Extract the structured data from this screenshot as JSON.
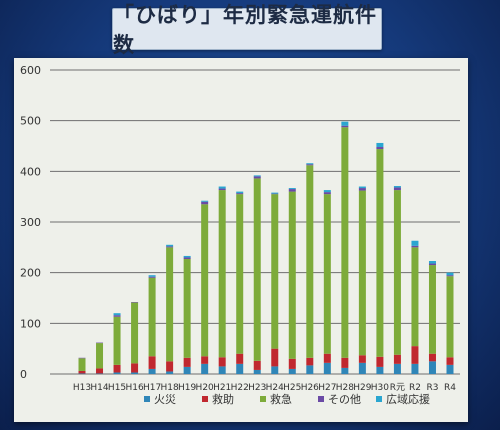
{
  "chart_data": {
    "type": "bar",
    "title": "「ひばり」年別緊急運航件数",
    "stacked": true,
    "ylim": [
      0,
      600
    ],
    "yticks": [
      "600",
      "500",
      "400",
      "300",
      "200",
      "100",
      "0"
    ],
    "categories": [
      "H13",
      "H14",
      "H15",
      "H16",
      "H17",
      "H18",
      "H19",
      "H20",
      "H21",
      "H22",
      "H23",
      "H24",
      "H25",
      "H26",
      "H27",
      "H28",
      "H29",
      "H30",
      "R元",
      "R2",
      "R3",
      "R4"
    ],
    "series": [
      {
        "name": "火災",
        "color": "#2f86b8",
        "values": [
          1,
          1,
          3,
          3,
          10,
          5,
          14,
          20,
          15,
          20,
          8,
          15,
          10,
          17,
          22,
          12,
          22,
          14,
          20,
          20,
          25,
          18
        ]
      },
      {
        "name": "救助",
        "color": "#c0282f",
        "values": [
          5,
          10,
          15,
          18,
          25,
          20,
          18,
          15,
          18,
          20,
          18,
          35,
          20,
          15,
          18,
          20,
          15,
          20,
          18,
          35,
          15,
          15
        ]
      },
      {
        "name": "救急",
        "color": "#7dab3a",
        "values": [
          25,
          50,
          95,
          120,
          155,
          225,
          195,
          300,
          330,
          315,
          360,
          305,
          330,
          380,
          315,
          455,
          325,
          410,
          325,
          195,
          175,
          160
        ]
      },
      {
        "name": "その他",
        "color": "#6a4aa5",
        "values": [
          1,
          1,
          3,
          1,
          2,
          2,
          3,
          5,
          3,
          2,
          4,
          1,
          5,
          2,
          4,
          3,
          5,
          4,
          5,
          3,
          3,
          2
        ]
      },
      {
        "name": "広域応援",
        "color": "#2aa6d0",
        "values": [
          0,
          0,
          4,
          0,
          3,
          3,
          3,
          2,
          4,
          3,
          2,
          2,
          2,
          2,
          4,
          8,
          3,
          8,
          3,
          10,
          5,
          5
        ]
      }
    ],
    "grid": true,
    "legend": "bottom"
  }
}
